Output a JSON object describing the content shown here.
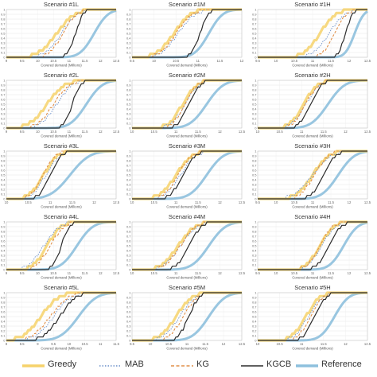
{
  "chart_data": {
    "type": "line",
    "series_names": [
      "Greedy",
      "MAB",
      "KG",
      "KGCB",
      "Reference"
    ],
    "colors": {
      "Greedy": "#f6d26b",
      "MAB": "#6a8fc9",
      "KG": "#e0904a",
      "KGCB": "#2b2b2b",
      "Reference": "#8ec0dd"
    },
    "legend_position": "bottom",
    "xlabel": "Covered demand (Millions)",
    "panels": [
      {
        "title": "Scenario #1L",
        "xlim": [
          9,
          12.5
        ],
        "xticks": [
          "9",
          "9.5",
          "10",
          "10.5",
          "11",
          "11.5",
          "12",
          "12.5"
        ],
        "yticks": [
          "0",
          "0.1",
          "0.2",
          "0.3",
          "0.4",
          "0.5",
          "0.6",
          "0.7",
          "0.8",
          "0.9",
          "1"
        ],
        "series": [
          {
            "name": "Greedy",
            "mu": 10.6,
            "sigma": 0.45
          },
          {
            "name": "MAB",
            "mu": 10.75,
            "sigma": 0.4
          },
          {
            "name": "KG",
            "mu": 10.8,
            "sigma": 0.35
          },
          {
            "name": "KGCB",
            "mu": 11.2,
            "sigma": 0.2
          },
          {
            "name": "Reference",
            "mu": 11.8,
            "sigma": 0.35
          }
        ]
      },
      {
        "title": "Scenario #1M",
        "xlim": [
          9.5,
          12
        ],
        "xticks": [
          "9.5",
          "10",
          "10.5",
          "11",
          "11.5",
          "12"
        ],
        "yticks": [
          "0",
          "0.1",
          "0.2",
          "0.3",
          "0.4",
          "0.5",
          "0.6",
          "0.7",
          "0.8",
          "0.9",
          "1"
        ],
        "series": [
          {
            "name": "Greedy",
            "mu": 10.45,
            "sigma": 0.3
          },
          {
            "name": "MAB",
            "mu": 10.55,
            "sigma": 0.3
          },
          {
            "name": "KG",
            "mu": 10.5,
            "sigma": 0.28
          },
          {
            "name": "KGCB",
            "mu": 11.05,
            "sigma": 0.15
          },
          {
            "name": "Reference",
            "mu": 11.25,
            "sigma": 0.25
          }
        ]
      },
      {
        "title": "Scenario #1H",
        "xlim": [
          9.5,
          12.5
        ],
        "xticks": [
          "9.5",
          "10",
          "10.5",
          "11",
          "11.5",
          "12",
          "12.5"
        ],
        "yticks": [
          "0",
          "0.1",
          "0.2",
          "0.3",
          "0.4",
          "0.5",
          "0.6",
          "0.7",
          "0.8",
          "0.9",
          "1"
        ],
        "series": [
          {
            "name": "Greedy",
            "mu": 11.2,
            "sigma": 0.35
          },
          {
            "name": "MAB",
            "mu": 11.45,
            "sigma": 0.35
          },
          {
            "name": "KG",
            "mu": 11.6,
            "sigma": 0.25
          },
          {
            "name": "KGCB",
            "mu": 11.9,
            "sigma": 0.15
          },
          {
            "name": "Reference",
            "mu": 12.15,
            "sigma": 0.2
          }
        ]
      },
      {
        "title": "Scenario #2L",
        "xlim": [
          9,
          12.5
        ],
        "xticks": [
          "9",
          "9.5",
          "10",
          "10.5",
          "11",
          "11.5",
          "12",
          "12.5"
        ],
        "yticks": [
          "0",
          "0.1",
          "0.2",
          "0.3",
          "0.4",
          "0.5",
          "0.6",
          "0.7",
          "0.8",
          "0.9",
          "1"
        ],
        "series": [
          {
            "name": "Greedy",
            "mu": 10.3,
            "sigma": 0.45
          },
          {
            "name": "MAB",
            "mu": 10.6,
            "sigma": 0.4
          },
          {
            "name": "KG",
            "mu": 10.5,
            "sigma": 0.4
          },
          {
            "name": "KGCB",
            "mu": 11.1,
            "sigma": 0.2
          },
          {
            "name": "Reference",
            "mu": 11.55,
            "sigma": 0.4
          }
        ]
      },
      {
        "title": "Scenario #2M",
        "xlim": [
          10,
          12.5
        ],
        "xticks": [
          "10",
          "10.5",
          "11",
          "11.5",
          "12",
          "12.5"
        ],
        "yticks": [
          "0",
          "0.1",
          "0.2",
          "0.3",
          "0.4",
          "0.5",
          "0.6",
          "0.7",
          "0.8",
          "0.9",
          "1"
        ],
        "series": [
          {
            "name": "Greedy",
            "mu": 11.15,
            "sigma": 0.25
          },
          {
            "name": "MAB",
            "mu": 11.2,
            "sigma": 0.25
          },
          {
            "name": "KG",
            "mu": 11.2,
            "sigma": 0.22
          },
          {
            "name": "KGCB",
            "mu": 11.3,
            "sigma": 0.2
          },
          {
            "name": "Reference",
            "mu": 11.7,
            "sigma": 0.3
          }
        ]
      },
      {
        "title": "Scenario #2H",
        "xlim": [
          10,
          12.5
        ],
        "xticks": [
          "10",
          "10.5",
          "11",
          "11.5",
          "12",
          "12.5"
        ],
        "yticks": [
          "0",
          "0.1",
          "0.2",
          "0.3",
          "0.4",
          "0.5",
          "0.6",
          "0.7",
          "0.8",
          "0.9",
          "1"
        ],
        "series": [
          {
            "name": "Greedy",
            "mu": 11.05,
            "sigma": 0.25
          },
          {
            "name": "MAB",
            "mu": 11.1,
            "sigma": 0.25
          },
          {
            "name": "KG",
            "mu": 11.1,
            "sigma": 0.23
          },
          {
            "name": "KGCB",
            "mu": 11.2,
            "sigma": 0.2
          },
          {
            "name": "Reference",
            "mu": 11.6,
            "sigma": 0.3
          }
        ]
      },
      {
        "title": "Scenario #3L",
        "xlim": [
          10,
          12.5
        ],
        "xticks": [
          "10",
          "10.5",
          "11",
          "11.5",
          "12",
          "12.5"
        ],
        "yticks": [
          "0",
          "0.1",
          "0.2",
          "0.3",
          "0.4",
          "0.5",
          "0.6",
          "0.7",
          "0.8",
          "0.9",
          "1"
        ],
        "series": [
          {
            "name": "Greedy",
            "mu": 10.85,
            "sigma": 0.25
          },
          {
            "name": "MAB",
            "mu": 10.9,
            "sigma": 0.25
          },
          {
            "name": "KG",
            "mu": 10.85,
            "sigma": 0.22
          },
          {
            "name": "KGCB",
            "mu": 11.0,
            "sigma": 0.2
          },
          {
            "name": "Reference",
            "mu": 11.45,
            "sigma": 0.35
          }
        ]
      },
      {
        "title": "Scenario #3M",
        "xlim": [
          10,
          12.5
        ],
        "xticks": [
          "10",
          "10.5",
          "11",
          "11.5",
          "12",
          "12.5"
        ],
        "yticks": [
          "0",
          "0.1",
          "0.2",
          "0.3",
          "0.4",
          "0.5",
          "0.6",
          "0.7",
          "0.8",
          "0.9",
          "1"
        ],
        "series": [
          {
            "name": "Greedy",
            "mu": 11.0,
            "sigma": 0.3
          },
          {
            "name": "MAB",
            "mu": 11.1,
            "sigma": 0.28
          },
          {
            "name": "KG",
            "mu": 11.05,
            "sigma": 0.25
          },
          {
            "name": "KGCB",
            "mu": 11.15,
            "sigma": 0.22
          },
          {
            "name": "Reference",
            "mu": 11.7,
            "sigma": 0.3
          }
        ]
      },
      {
        "title": "Scenario #3H",
        "xlim": [
          9.5,
          12.5
        ],
        "xticks": [
          "9.5",
          "10",
          "10.5",
          "11",
          "11.5",
          "12",
          "12.5"
        ],
        "yticks": [
          "0",
          "0.1",
          "0.2",
          "0.3",
          "0.4",
          "0.5",
          "0.6",
          "0.7",
          "0.8",
          "0.9",
          "1"
        ],
        "series": [
          {
            "name": "Greedy",
            "mu": 11.0,
            "sigma": 0.35
          },
          {
            "name": "MAB",
            "mu": 11.0,
            "sigma": 0.4
          },
          {
            "name": "KG",
            "mu": 11.05,
            "sigma": 0.3
          },
          {
            "name": "KGCB",
            "mu": 11.3,
            "sigma": 0.25
          },
          {
            "name": "Reference",
            "mu": 11.7,
            "sigma": 0.35
          }
        ]
      },
      {
        "title": "Scenario #4L",
        "xlim": [
          9,
          12.5
        ],
        "xticks": [
          "9",
          "9.5",
          "10",
          "10.5",
          "11",
          "11.5",
          "12",
          "12.5"
        ],
        "yticks": [
          "0",
          "0.1",
          "0.2",
          "0.3",
          "0.4",
          "0.5",
          "0.6",
          "0.7",
          "0.8",
          "0.9",
          "1"
        ],
        "series": [
          {
            "name": "Greedy",
            "mu": 10.3,
            "sigma": 0.35
          },
          {
            "name": "MAB",
            "mu": 10.2,
            "sigma": 0.4
          },
          {
            "name": "KG",
            "mu": 10.4,
            "sigma": 0.35
          },
          {
            "name": "KGCB",
            "mu": 10.75,
            "sigma": 0.2
          },
          {
            "name": "Reference",
            "mu": 11.25,
            "sigma": 0.4
          }
        ]
      },
      {
        "title": "Scenario #4M",
        "xlim": [
          10,
          12.5
        ],
        "xticks": [
          "10",
          "10.5",
          "11",
          "11.5",
          "12",
          "12.5"
        ],
        "yticks": [
          "0",
          "0.1",
          "0.2",
          "0.3",
          "0.4",
          "0.5",
          "0.6",
          "0.7",
          "0.8",
          "0.9",
          "1"
        ],
        "series": [
          {
            "name": "Greedy",
            "mu": 11.05,
            "sigma": 0.3
          },
          {
            "name": "MAB",
            "mu": 11.1,
            "sigma": 0.3
          },
          {
            "name": "KG",
            "mu": 11.1,
            "sigma": 0.28
          },
          {
            "name": "KGCB",
            "mu": 11.3,
            "sigma": 0.22
          },
          {
            "name": "Reference",
            "mu": 11.75,
            "sigma": 0.3
          }
        ]
      },
      {
        "title": "Scenario #4H",
        "xlim": [
          9.5,
          12.5
        ],
        "xticks": [
          "9.5",
          "10",
          "10.5",
          "11",
          "11.5",
          "12",
          "12.5"
        ],
        "yticks": [
          "0",
          "0.1",
          "0.2",
          "0.3",
          "0.4",
          "0.5",
          "0.6",
          "0.7",
          "0.8",
          "0.9",
          "1"
        ],
        "series": [
          {
            "name": "Greedy",
            "mu": 11.2,
            "sigma": 0.3
          },
          {
            "name": "MAB",
            "mu": 11.25,
            "sigma": 0.3
          },
          {
            "name": "KG",
            "mu": 11.2,
            "sigma": 0.28
          },
          {
            "name": "KGCB",
            "mu": 11.45,
            "sigma": 0.25
          },
          {
            "name": "Reference",
            "mu": 11.85,
            "sigma": 0.3
          }
        ]
      },
      {
        "title": "Scenario #5L",
        "xlim": [
          8,
          11.5
        ],
        "xticks": [
          "8",
          "8.5",
          "9",
          "9.5",
          "10",
          "10.5",
          "11",
          "11.5"
        ],
        "yticks": [
          "0",
          "0.1",
          "0.2",
          "0.3",
          "0.4",
          "0.5",
          "0.6",
          "0.7",
          "0.8",
          "0.9",
          "1"
        ],
        "series": [
          {
            "name": "Greedy",
            "mu": 9.1,
            "sigma": 0.45
          },
          {
            "name": "MAB",
            "mu": 9.5,
            "sigma": 0.45
          },
          {
            "name": "KG",
            "mu": 9.4,
            "sigma": 0.45
          },
          {
            "name": "KGCB",
            "mu": 9.7,
            "sigma": 0.4
          },
          {
            "name": "Reference",
            "mu": 10.3,
            "sigma": 0.45
          }
        ]
      },
      {
        "title": "Scenario #5M",
        "xlim": [
          9.5,
          12.5
        ],
        "xticks": [
          "9.5",
          "10",
          "10.5",
          "11",
          "11.5",
          "12",
          "12.5"
        ],
        "yticks": [
          "0",
          "0.1",
          "0.2",
          "0.3",
          "0.4",
          "0.5",
          "0.6",
          "0.7",
          "0.8",
          "0.9",
          "1"
        ],
        "series": [
          {
            "name": "Greedy",
            "mu": 10.7,
            "sigma": 0.35
          },
          {
            "name": "MAB",
            "mu": 10.8,
            "sigma": 0.35
          },
          {
            "name": "KG",
            "mu": 10.9,
            "sigma": 0.3
          },
          {
            "name": "KGCB",
            "mu": 11.05,
            "sigma": 0.22
          },
          {
            "name": "Reference",
            "mu": 11.6,
            "sigma": 0.35
          }
        ]
      },
      {
        "title": "Scenario #5H",
        "xlim": [
          10,
          12.5
        ],
        "xticks": [
          "10",
          "10.5",
          "11",
          "11.5",
          "12",
          "12.5"
        ],
        "yticks": [
          "0",
          "0.1",
          "0.2",
          "0.3",
          "0.4",
          "0.5",
          "0.6",
          "0.7",
          "0.8",
          "0.9",
          "1"
        ],
        "series": [
          {
            "name": "Greedy",
            "mu": 11.1,
            "sigma": 0.25
          },
          {
            "name": "MAB",
            "mu": 11.15,
            "sigma": 0.25
          },
          {
            "name": "KG",
            "mu": 11.2,
            "sigma": 0.22
          },
          {
            "name": "KGCB",
            "mu": 11.3,
            "sigma": 0.2
          },
          {
            "name": "Reference",
            "mu": 11.75,
            "sigma": 0.25
          }
        ]
      }
    ]
  }
}
